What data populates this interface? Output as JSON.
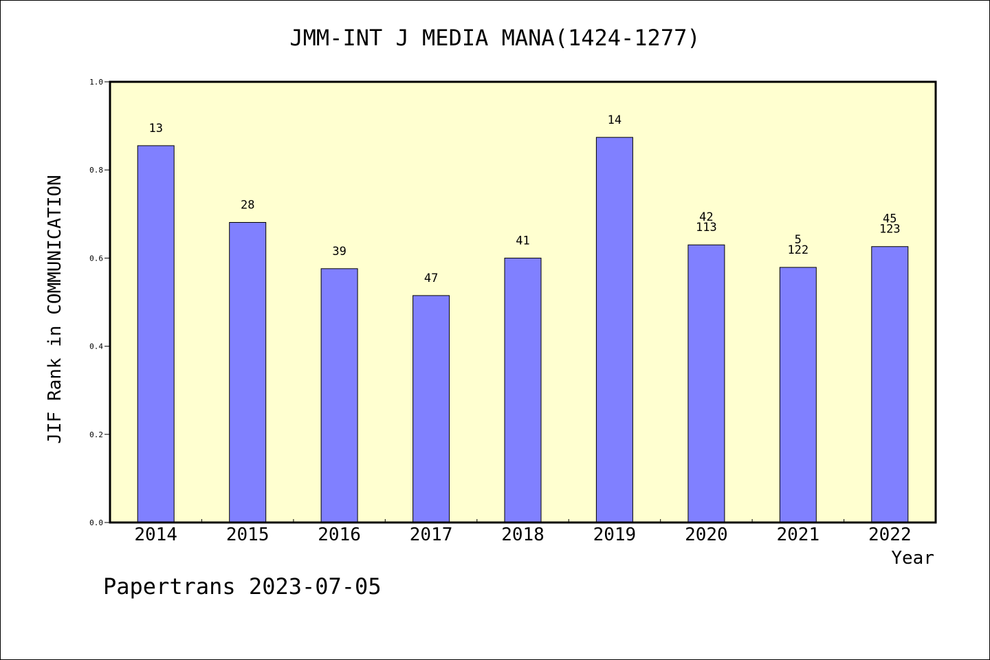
{
  "chart_data": {
    "type": "bar",
    "title": "JMM-INT J MEDIA MANA(1424-1277)",
    "xlabel": "Year",
    "ylabel": "JIF Rank in COMMUNICATION",
    "ylim": [
      0,
      1.0
    ],
    "yticks": [
      "0.0",
      "0.2",
      "0.4",
      "0.6",
      "0.8",
      "1.0"
    ],
    "categories": [
      "2014",
      "2015",
      "2016",
      "2017",
      "2018",
      "2019",
      "2020",
      "2021",
      "2022"
    ],
    "values": [
      0.855,
      0.681,
      0.576,
      0.515,
      0.6,
      0.874,
      0.63,
      0.579,
      0.626
    ],
    "bar_labels": [
      [
        "13"
      ],
      [
        "28"
      ],
      [
        "39"
      ],
      [
        "47"
      ],
      [
        "41"
      ],
      [
        "14"
      ],
      [
        "42",
        "113"
      ],
      [
        "5",
        "122"
      ],
      [
        "45",
        "123"
      ]
    ],
    "grid": false,
    "colors": {
      "bar": "#8080ff",
      "plot_bg": "#ffffd0",
      "frame": "#000000"
    }
  },
  "footer": "Papertrans 2023-07-05"
}
